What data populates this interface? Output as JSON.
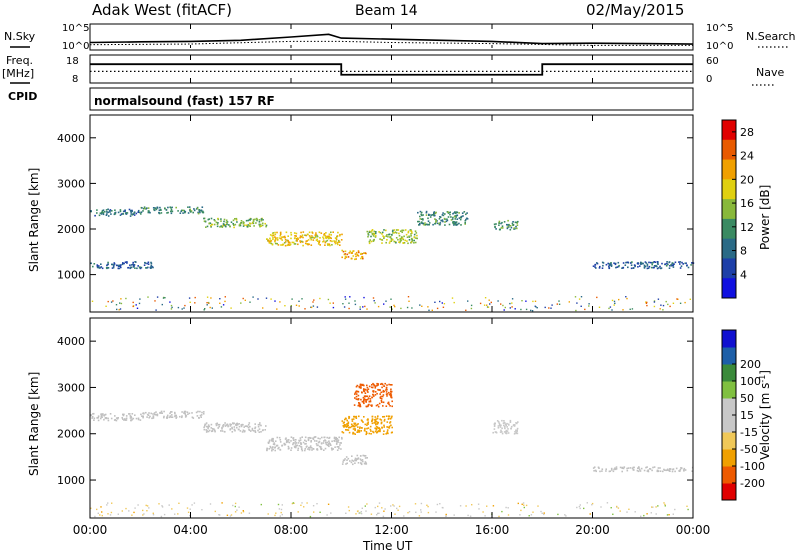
{
  "header": {
    "station": "Adak West (fitACF)",
    "beam": "Beam 14",
    "date": "02/May/2015"
  },
  "side_labels": {
    "nsky": "N.Sky",
    "freq": "Freq.",
    "freq_unit": "[MHz]",
    "cpid": "CPID",
    "nsearch": "N.Search",
    "nave": "Nave",
    "nsky_ticks": [
      "10^5",
      "10^0"
    ],
    "nsearch_ticks": [
      "10^5",
      "10^0"
    ],
    "freq_ticks": [
      "18",
      "8"
    ],
    "nave_ticks": [
      "60",
      "0"
    ]
  },
  "cpid_text": "normalsound (fast) 157 RF",
  "colors": {
    "power_scale": [
      "#1010e0",
      "#1d3fa8",
      "#2a6a86",
      "#3a8a62",
      "#88b83a",
      "#e0d010",
      "#f0a000",
      "#e85a00",
      "#e00000"
    ],
    "velocity_scale": [
      "#e00000",
      "#ee5a00",
      "#f0a000",
      "#f0c858",
      "#c8c8c8",
      "#c8c8c8",
      "#80c040",
      "#3a8a3a",
      "#1d5fa8",
      "#1010d0"
    ],
    "ground_scatter": "#c0c0c0"
  },
  "chart_data": [
    {
      "type": "line",
      "panel": "sky-noise",
      "ylabel": "N.Sky",
      "y_right_label": "N.Search",
      "yscale": "log",
      "y_ticks": [
        "10^5",
        "10^0"
      ],
      "xlim": [
        "00:00",
        "24:00"
      ],
      "series": [
        {
          "name": "N.Sky",
          "x": [
            "00:00",
            "02:00",
            "04:00",
            "06:00",
            "08:00",
            "09:30",
            "10:00",
            "12:00",
            "14:00",
            "16:00",
            "18:00",
            "20:00",
            "22:00",
            "24:00"
          ],
          "values_frac_of_log_range": [
            0.25,
            0.28,
            0.3,
            0.35,
            0.5,
            0.62,
            0.45,
            0.4,
            0.35,
            0.3,
            0.2,
            0.22,
            0.2,
            0.18
          ]
        },
        {
          "name": "N.Search",
          "x": [
            "00:00",
            "04:00",
            "08:00",
            "10:00",
            "12:00",
            "16:00",
            "20:00",
            "24:00"
          ],
          "values_frac_of_log_range": [
            0.15,
            0.18,
            0.3,
            0.3,
            0.25,
            0.2,
            0.12,
            0.12
          ]
        }
      ]
    },
    {
      "type": "line",
      "panel": "frequency-nave",
      "ylabel": "Freq. [MHz]",
      "y_right_label": "Nave",
      "ylim": [
        8,
        18
      ],
      "y_right_lim": [
        0,
        60
      ],
      "series": [
        {
          "name": "Freq.",
          "x": [
            "00:00",
            "10:00",
            "10:00",
            "18:00",
            "18:00",
            "24:00"
          ],
          "values": [
            15,
            15,
            10.6,
            10.6,
            15,
            15
          ]
        },
        {
          "name": "Nave",
          "x": [
            "00:00",
            "24:00"
          ],
          "values": [
            24,
            24
          ]
        }
      ]
    },
    {
      "type": "heatmap",
      "panel": "power",
      "ylabel": "Slant Range [km]",
      "xlabel": "",
      "xlim": [
        "00:00",
        "24:00"
      ],
      "ylim": [
        180,
        4500
      ],
      "x_ticks": [
        "00:00",
        "04:00",
        "08:00",
        "12:00",
        "16:00",
        "20:00",
        "00:00"
      ],
      "y_ticks": [
        1000,
        2000,
        3000,
        4000
      ],
      "colorbar": {
        "label": "Power [dB]",
        "ticks": [
          4,
          8,
          12,
          16,
          20,
          24,
          28
        ],
        "range": [
          0,
          30
        ]
      },
      "bands": [
        {
          "start": "00:00",
          "end": "02:00",
          "range_km": [
            2300,
            2450
          ],
          "power_db": 8
        },
        {
          "start": "02:00",
          "end": "04:30",
          "range_km": [
            2350,
            2500
          ],
          "power_db": 10
        },
        {
          "start": "04:30",
          "end": "07:00",
          "range_km": [
            2050,
            2250
          ],
          "power_db": 14
        },
        {
          "start": "07:00",
          "end": "10:00",
          "range_km": [
            1650,
            1950
          ],
          "power_db": 20
        },
        {
          "start": "10:00",
          "end": "11:00",
          "range_km": [
            1350,
            1550
          ],
          "power_db": 22
        },
        {
          "start": "11:00",
          "end": "13:00",
          "range_km": [
            1700,
            2000
          ],
          "power_db": 16
        },
        {
          "start": "13:00",
          "end": "15:00",
          "range_km": [
            2100,
            2400
          ],
          "power_db": 10
        },
        {
          "start": "16:00",
          "end": "17:00",
          "range_km": [
            2000,
            2200
          ],
          "power_db": 12
        },
        {
          "start": "00:00",
          "end": "02:30",
          "range_km": [
            1150,
            1300
          ],
          "power_db": 6
        },
        {
          "start": "20:00",
          "end": "24:00",
          "range_km": [
            1150,
            1300
          ],
          "power_db": 6
        }
      ]
    },
    {
      "type": "heatmap",
      "panel": "velocity",
      "ylabel": "Slant Range [km]",
      "xlabel": "Time UT",
      "xlim": [
        "00:00",
        "24:00"
      ],
      "ylim": [
        180,
        4500
      ],
      "x_ticks": [
        "00:00",
        "04:00",
        "08:00",
        "12:00",
        "16:00",
        "20:00",
        "00:00"
      ],
      "y_ticks": [
        1000,
        2000,
        3000,
        4000
      ],
      "colorbar": {
        "label": "Velocity [m s^-1]",
        "ticks": [
          200,
          100,
          50,
          15,
          -15,
          -50,
          -100,
          -200
        ],
        "range": [
          -250,
          250
        ]
      },
      "bands": [
        {
          "start": "00:00",
          "end": "02:00",
          "range_km": [
            2300,
            2450
          ],
          "velocity": "ground-scatter"
        },
        {
          "start": "02:00",
          "end": "04:30",
          "range_km": [
            2350,
            2500
          ],
          "velocity": "ground-scatter"
        },
        {
          "start": "04:30",
          "end": "07:00",
          "range_km": [
            2050,
            2250
          ],
          "velocity": "ground-scatter"
        },
        {
          "start": "07:00",
          "end": "10:00",
          "range_km": [
            1650,
            1950
          ],
          "velocity": "ground-scatter"
        },
        {
          "start": "10:00",
          "end": "11:00",
          "range_km": [
            1350,
            1550
          ],
          "velocity": "ground-scatter"
        },
        {
          "start": "10:00",
          "end": "12:00",
          "range_km": [
            2000,
            2400
          ],
          "velocity": -60
        },
        {
          "start": "10:30",
          "end": "12:00",
          "range_km": [
            2600,
            3100
          ],
          "velocity": -200
        },
        {
          "start": "16:00",
          "end": "17:00",
          "range_km": [
            2000,
            2300
          ],
          "velocity": 30
        },
        {
          "start": "20:00",
          "end": "24:00",
          "range_km": [
            1200,
            1300
          ],
          "velocity": "ground-scatter"
        }
      ]
    }
  ],
  "axis_titles": {
    "power_colorbar": "Power [dB]",
    "velocity_colorbar": "Velocity [m s",
    "velocity_colorbar_sup": "-1",
    "velocity_colorbar_end": "]",
    "slant_range": "Slant Range [km]",
    "time": "Time UT"
  }
}
